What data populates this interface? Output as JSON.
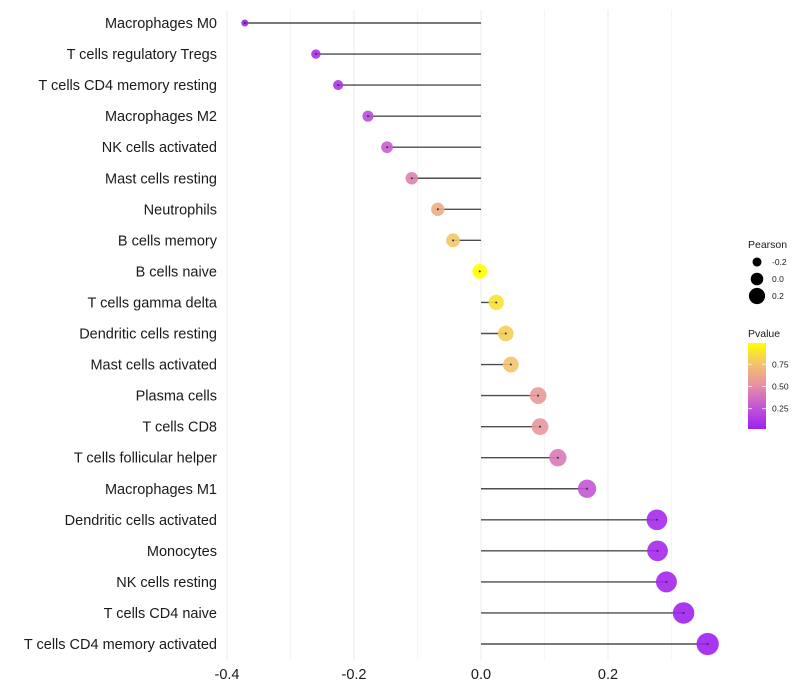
{
  "chart_data": {
    "type": "lollipop",
    "title": "",
    "xlabel": "",
    "ylabel": "",
    "xlim": [
      -0.4,
      0.36
    ],
    "x_ticks": [
      -0.4,
      -0.2,
      0.0,
      0.2
    ],
    "x_tick_labels": [
      "-0.4",
      "-0.2",
      "0.0",
      "0.2"
    ],
    "x_minor_grid": [
      -0.3,
      -0.1,
      0.1,
      0.3
    ],
    "grid": true,
    "baseline": 0.0,
    "categories": [
      "Macrophages M0",
      "T cells regulatory  Tregs ",
      "T cells CD4 memory resting",
      "Macrophages M2",
      "NK cells activated",
      "Mast cells resting",
      "Neutrophils",
      "B cells memory",
      "B cells naive",
      "T cells gamma delta",
      "Dendritic cells resting",
      "Mast cells activated",
      "Plasma cells",
      "T cells CD8",
      "T cells follicular helper",
      "Macrophages M1",
      "Dendritic cells activated",
      "Monocytes",
      "NK cells resting",
      "T cells CD4 naive",
      "T cells CD4 memory activated"
    ],
    "series": [
      {
        "name": "Pearson",
        "values": [
          -0.372,
          -0.26,
          -0.225,
          -0.178,
          -0.148,
          -0.109,
          -0.068,
          -0.044,
          -0.002,
          0.024,
          0.039,
          0.047,
          0.09,
          0.093,
          0.121,
          0.167,
          0.277,
          0.278,
          0.292,
          0.319,
          0.357
        ]
      },
      {
        "name": "Pvalue",
        "values": [
          0.02,
          0.08,
          0.12,
          0.22,
          0.3,
          0.45,
          0.65,
          0.77,
          0.99,
          0.88,
          0.8,
          0.76,
          0.56,
          0.55,
          0.42,
          0.27,
          0.06,
          0.06,
          0.05,
          0.03,
          0.02
        ]
      }
    ],
    "legend": {
      "placement": "right",
      "size_legend": {
        "title": "Pearson",
        "entries": [
          {
            "label": "-0.2",
            "value": -0.2
          },
          {
            "label": "0.0",
            "value": 0.0
          },
          {
            "label": "0.2",
            "value": 0.2
          }
        ]
      },
      "color_legend": {
        "title": "Pvalue",
        "ticks": [
          {
            "label": "0.75",
            "value": 0.75
          },
          {
            "label": "0.50",
            "value": 0.5
          },
          {
            "label": "0.25",
            "value": 0.25
          }
        ],
        "range": [
          0.02,
          0.99
        ],
        "low_color": "#A020F0",
        "high_color": "#FFFF00"
      }
    },
    "colors": {
      "stem": "#4d4d4d",
      "grid": "#ebebeb",
      "text": "#1a1a1a"
    }
  }
}
